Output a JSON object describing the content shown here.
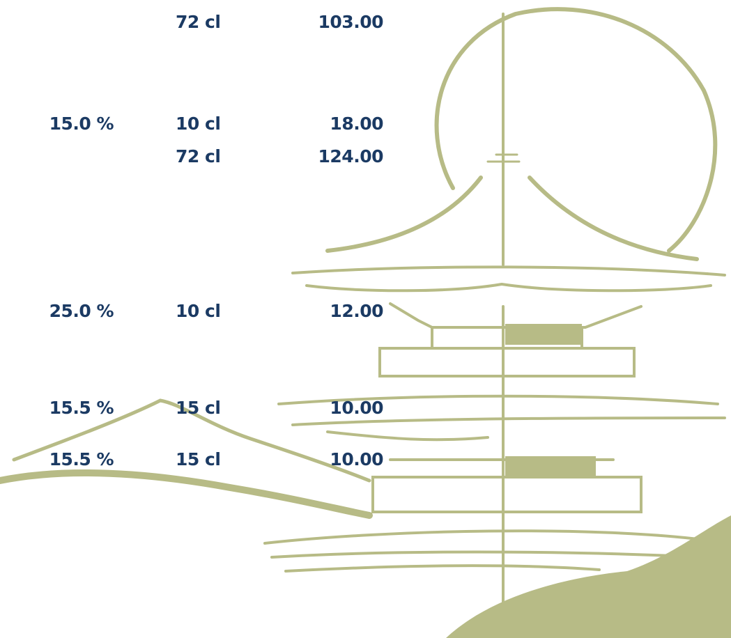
{
  "menu": {
    "rows": [
      {
        "volume": "72 cl",
        "price": "103.00"
      },
      {
        "abv": "15.0 %",
        "volume": "10 cl",
        "price": "18.00"
      },
      {
        "volume": "72 cl",
        "price": "124.00"
      },
      {
        "abv": "25.0 %",
        "volume": "10 cl",
        "price": "12.00"
      },
      {
        "abv": "15.5 %",
        "volume": "15 cl",
        "price": "10.00"
      },
      {
        "abv": "15.5 %",
        "volume": "15 cl",
        "price": "10.00"
      }
    ]
  }
}
